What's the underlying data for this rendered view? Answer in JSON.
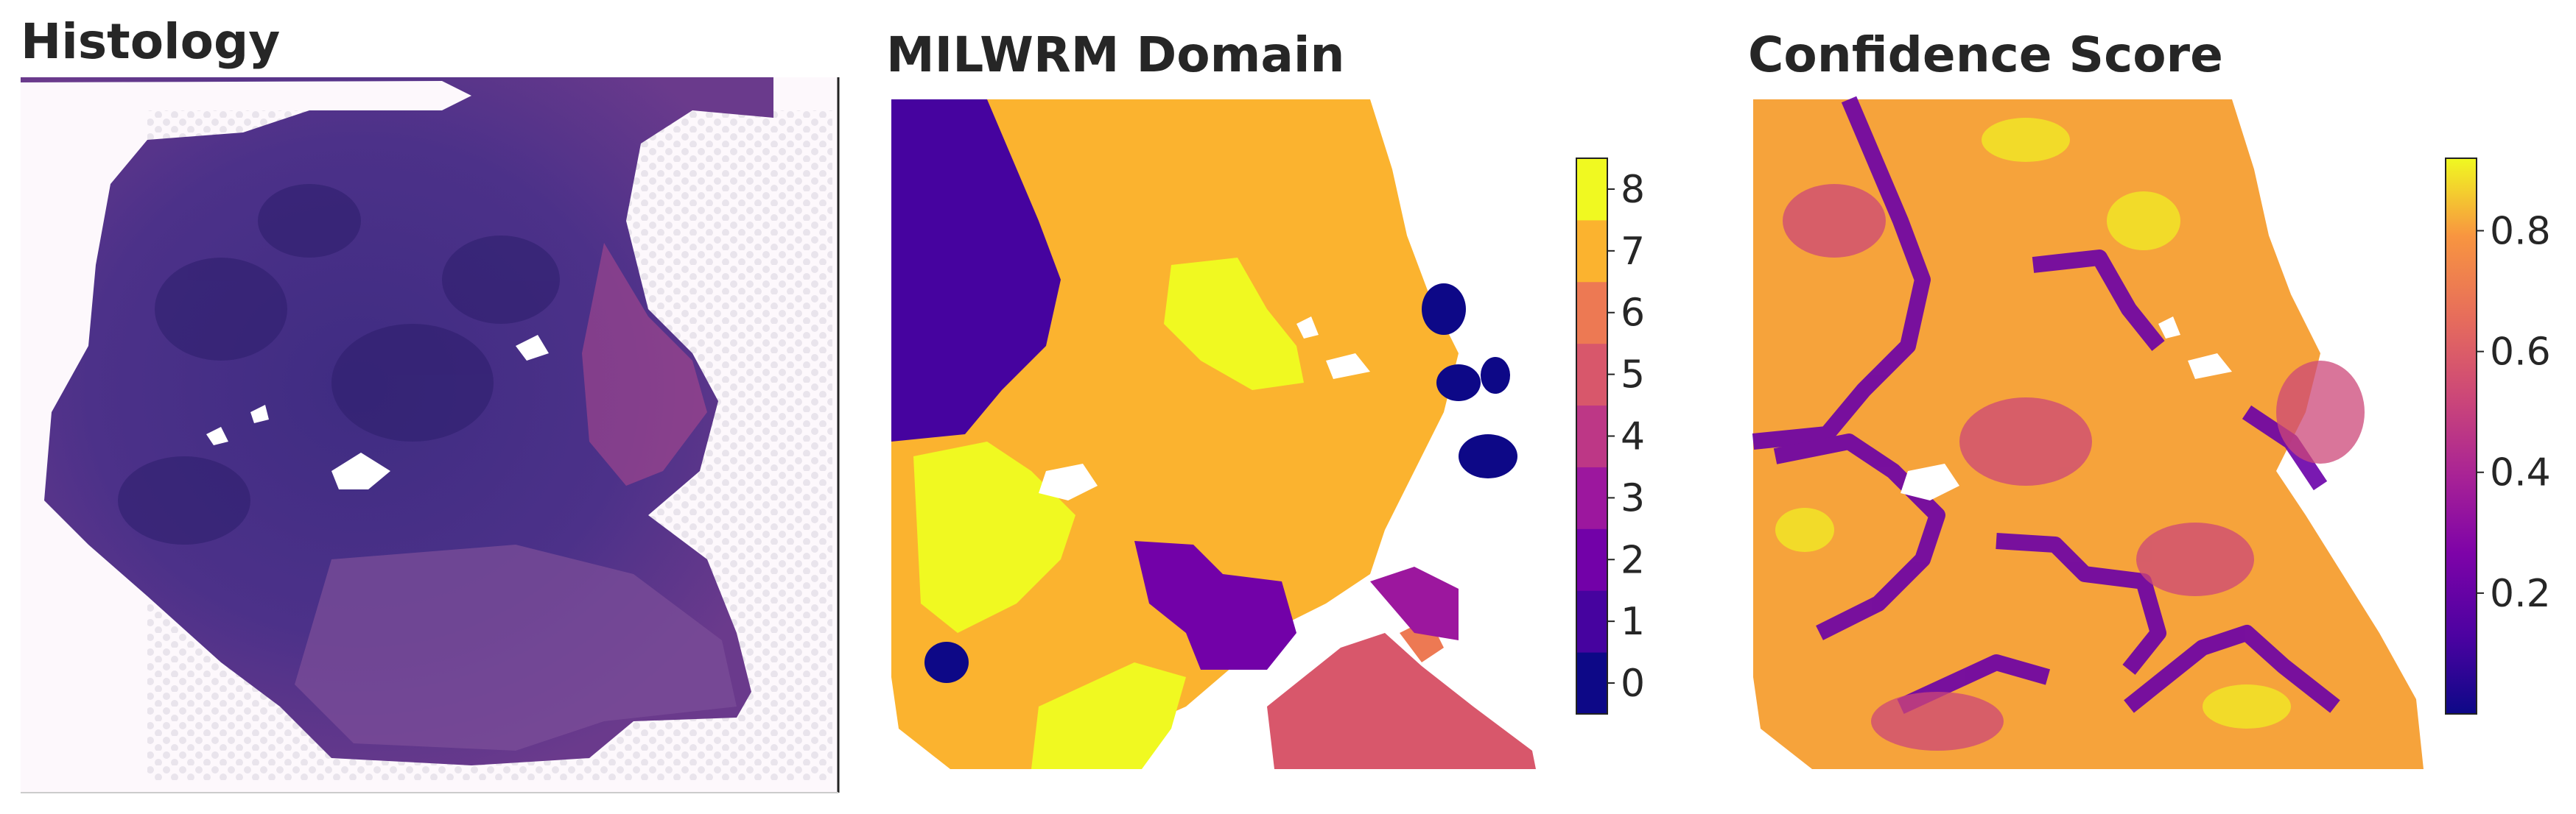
{
  "figure": {
    "panels": [
      {
        "title": "Histology"
      },
      {
        "title": "MILWRM Domain"
      },
      {
        "title": "Confidence Score"
      }
    ]
  },
  "chart_data": [
    {
      "type": "image",
      "title": "Histology",
      "colors": {
        "tissue": "#4a2f86",
        "stroma": "#b4468e",
        "background": "#fbf6fb"
      }
    },
    {
      "type": "heatmap",
      "title": "MILWRM Domain",
      "colorbar": {
        "ticks": [
          0,
          1,
          2,
          3,
          4,
          5,
          6,
          7,
          8
        ],
        "tick_labels": [
          "0",
          "1",
          "2",
          "3",
          "4",
          "5",
          "6",
          "7",
          "8"
        ],
        "range": [
          -0.5,
          8.5
        ],
        "colormap": "plasma (discrete, 9 levels)"
      },
      "domain_colors": [
        "#0d0887",
        "#46039f",
        "#7201a8",
        "#9c179e",
        "#bd3786",
        "#d8576b",
        "#ed7953",
        "#fbb32f",
        "#f0f921"
      ],
      "dominant_domains": [
        7,
        0,
        1,
        2,
        5,
        8
      ]
    },
    {
      "type": "heatmap",
      "title": "Confidence Score",
      "colorbar": {
        "ticks": [
          0.2,
          0.4,
          0.6,
          0.8
        ],
        "tick_labels": [
          "0.2",
          "0.4",
          "0.6",
          "0.8"
        ],
        "range": [
          0.0,
          0.92
        ],
        "colormap": "plasma"
      }
    }
  ]
}
